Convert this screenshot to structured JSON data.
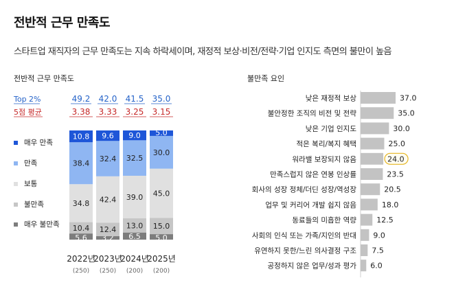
{
  "header": {
    "title": "전반적 근무 만족도",
    "subtitle": "스타트업 재직자의 근무 만족도는 지속 하락세이며, 재정적 보상·비전/전략·기업 인지도 측면의 불만이 높음"
  },
  "colors": {
    "very_satisfied": "#1e56d8",
    "satisfied": "#8fb6f2",
    "neutral": "#e0e0e0",
    "dissatisfied": "#c6c6c6",
    "very_dissatisfied": "#7d7d7d",
    "bar_gray": "#c3c3c3",
    "top2": "#2563c9",
    "avg": "#c62828",
    "highlight": "#e6b520"
  },
  "chart_data": [
    {
      "type": "bar",
      "stacked": true,
      "title": "전반적 근무 만족도",
      "top2_label": "Top 2%",
      "avg_label": "5점 평균",
      "categories": [
        "2022년",
        "2023년",
        "2024년",
        "2025년"
      ],
      "sample_sizes": [
        "(250)",
        "(250)",
        "(200)",
        "(200)"
      ],
      "top2_values": [
        "49.2",
        "42.0",
        "41.5",
        "35.0"
      ],
      "avg_values": [
        "3.38",
        "3.33",
        "3.25",
        "3.15"
      ],
      "series": [
        {
          "name": "매우 만족",
          "key": "very_satisfied",
          "values": [
            10.8,
            9.6,
            9.0,
            5.0
          ]
        },
        {
          "name": "만족",
          "key": "satisfied",
          "values": [
            38.4,
            32.4,
            32.5,
            30.0
          ]
        },
        {
          "name": "보통",
          "key": "neutral",
          "values": [
            34.8,
            42.4,
            39.0,
            45.0
          ]
        },
        {
          "name": "불만족",
          "key": "dissatisfied",
          "values": [
            10.4,
            12.4,
            13.0,
            15.0
          ]
        },
        {
          "name": "매우 불만족",
          "key": "very_dissatisfied",
          "values": [
            5.6,
            3.2,
            6.5,
            5.0
          ]
        }
      ],
      "ylim": [
        0,
        100
      ]
    },
    {
      "type": "bar",
      "orientation": "horizontal",
      "title": "불만족 요인",
      "categories": [
        "낮은 재정적 보상",
        "불안정한 조직의 비전 및 전략",
        "낮은 기업 인지도",
        "적은 복리/복지 혜택",
        "워라밸 보장되지 않음",
        "만족스럽지 않은 연봉 인상률",
        "회사의 성장 정체/더딘 성장/역성장",
        "업무 및 커리어 개발 쉽지 않음",
        "동료들의 미흡한 역량",
        "사회의 인식 또는 가족/지인의 반대",
        "유연하지 못한/느린 의사결정 구조",
        "공정하지 않은 업무/성과 평가"
      ],
      "values": [
        37.0,
        35.0,
        30.0,
        25.0,
        24.0,
        23.5,
        20.5,
        18.0,
        12.5,
        9.0,
        7.5,
        6.0
      ],
      "value_labels": [
        "37.0",
        "35.0",
        "30.0",
        "25.0",
        "24.0",
        "23.5",
        "20.5",
        "18.0",
        "12.5",
        "9.0",
        "7.5",
        "6.0"
      ],
      "highlight": "워라밸 보장되지 않음",
      "xlim": [
        0,
        40
      ]
    }
  ]
}
